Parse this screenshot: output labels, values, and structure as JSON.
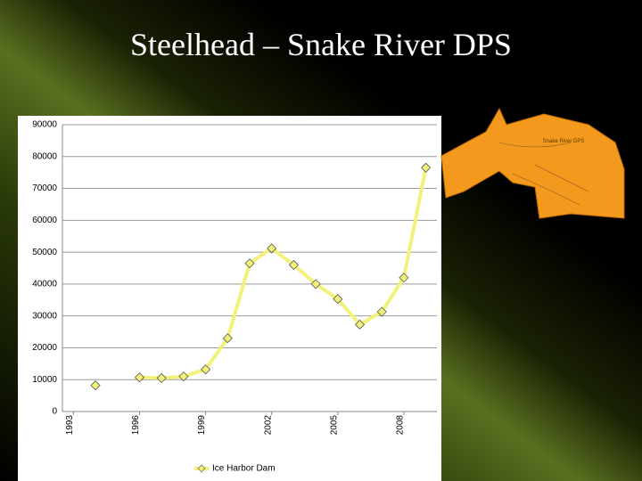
{
  "title": "Steelhead – Snake River DPS",
  "map_label": "Snake River DPS",
  "chart_data": {
    "type": "line",
    "x": [
      1994,
      1995,
      1996,
      1997,
      1998,
      1999,
      2000,
      2001,
      2002,
      2003,
      2004,
      2005,
      2006,
      2007,
      2008,
      2009
    ],
    "series": [
      {
        "name": "Ice Harbor Dam",
        "color": "#f2f27a",
        "values": [
          8200,
          null,
          10700,
          10500,
          11000,
          13200,
          23000,
          46500,
          51200,
          46000,
          40000,
          35300,
          27300,
          31300,
          42000,
          76500
        ]
      }
    ],
    "xlim": [
      1992.5,
      2009.5
    ],
    "xticks": [
      1993,
      1996,
      1999,
      2002,
      2005,
      2008
    ],
    "ylim": [
      0,
      90000
    ],
    "yticks": [
      0,
      10000,
      20000,
      30000,
      40000,
      50000,
      60000,
      70000,
      80000,
      90000
    ],
    "grid": true
  }
}
